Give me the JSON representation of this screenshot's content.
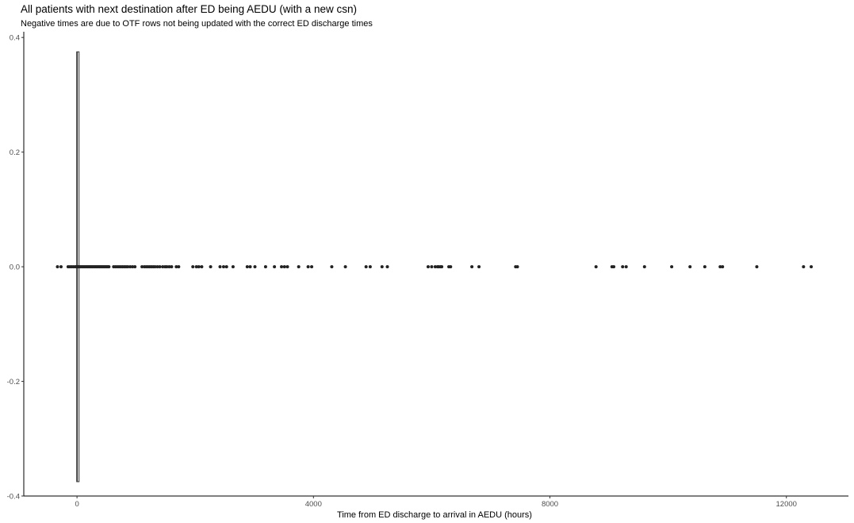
{
  "chart_data": {
    "type": "boxplot-with-points",
    "title": "All patients with next destination after ED being AEDU (with a new csn)",
    "subtitle": "Negative times are due to OTF rows not being updated with the correct ED discharge times",
    "xlabel": "Time from ED discharge to arrival in AEDU (hours)",
    "ylabel": "",
    "xlim": [
      -900,
      13050
    ],
    "ylim": [
      -0.4,
      0.41
    ],
    "x_ticks": [
      0,
      4000,
      8000,
      12000
    ],
    "x_tick_labels": [
      "0",
      "4000",
      "8000",
      "12000"
    ],
    "y_ticks": [
      -0.4,
      -0.2,
      0.0,
      0.2,
      0.4
    ],
    "y_tick_labels": [
      "-0.4",
      "-0.2",
      "0.0",
      "0.2",
      "0.4"
    ],
    "grid": false,
    "box": {
      "min": -30,
      "q1": 0,
      "median": 5,
      "q3": 30,
      "max": 330,
      "width_extent": [
        -0.375,
        0.375
      ]
    },
    "points_y": 0.0,
    "points_x": [
      -330,
      -270,
      -150,
      -120,
      -90,
      -60,
      -30,
      -10,
      0,
      10,
      25,
      40,
      60,
      80,
      100,
      120,
      140,
      160,
      180,
      200,
      220,
      240,
      260,
      280,
      300,
      320,
      340,
      360,
      380,
      400,
      420,
      440,
      460,
      480,
      500,
      520,
      540,
      620,
      650,
      680,
      710,
      740,
      770,
      800,
      830,
      860,
      900,
      940,
      980,
      1100,
      1140,
      1170,
      1200,
      1230,
      1260,
      1290,
      1320,
      1360,
      1400,
      1450,
      1490,
      1520,
      1560,
      1600,
      1680,
      1720,
      1960,
      2020,
      2060,
      2110,
      2260,
      2420,
      2480,
      2530,
      2640,
      2880,
      2930,
      3010,
      3190,
      3340,
      3460,
      3510,
      3560,
      3750,
      3910,
      3970,
      4310,
      4540,
      4890,
      4960,
      5160,
      5250,
      5940,
      6000,
      6060,
      6100,
      6120,
      6150,
      6170,
      6290,
      6320,
      6680,
      6800,
      7420,
      7450,
      8780,
      9050,
      9080,
      9230,
      9290,
      9600,
      10060,
      10370,
      10620,
      10880,
      10920,
      11500,
      12290,
      12420
    ]
  }
}
